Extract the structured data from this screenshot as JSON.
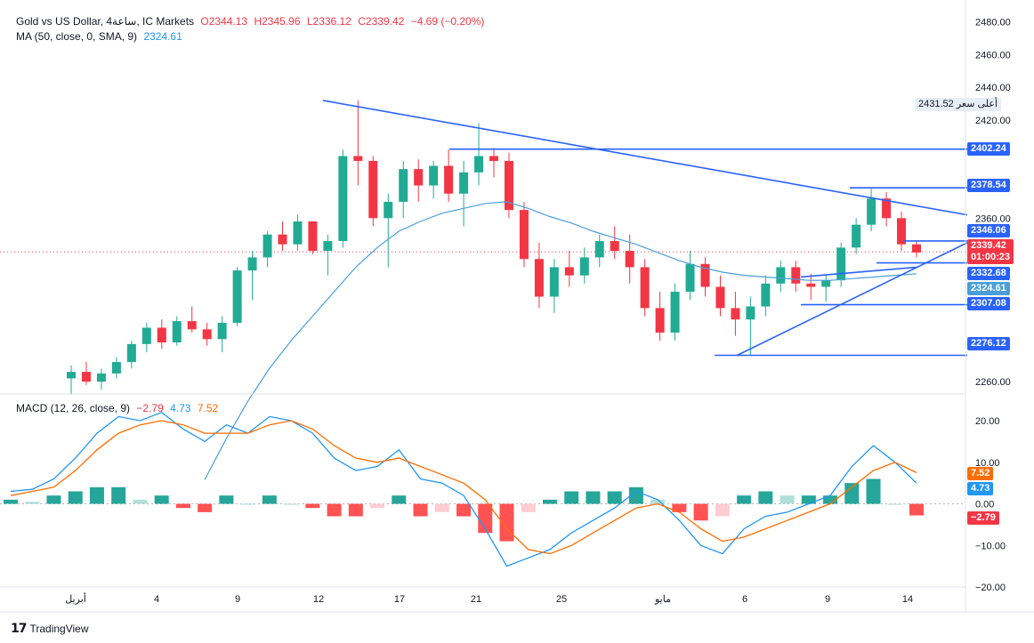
{
  "legend": {
    "symbol": "Gold vs US Dollar, 4ساعة, IC Markets",
    "open": "O2344.13",
    "high": "H2345.96",
    "low": "L2336.12",
    "close": "C2339.42",
    "change": "−4.69 (−0.20%)",
    "ma_label": "MA (50, close, 0, SMA, 9)",
    "ma_value": "2324.61",
    "macd_label": "MACD (12, 26, close, 9)",
    "macd_hist": "−2.79",
    "macd_line": "4.73",
    "macd_signal": "7.52"
  },
  "price_tags": {
    "high_label": "أعلى سعر",
    "high_value": "2431.52",
    "t2402": "2402.24",
    "t2378": "2378.54",
    "t2346": "2346.06",
    "current": "2339.42",
    "countdown": "01:00:23",
    "t2332": "2332.68",
    "ma": "2324.61",
    "t2307": "2307.08",
    "t2276": "2276.12"
  },
  "macd_tags": {
    "signal": "7.52",
    "macd": "4.73",
    "hist": "−2.79"
  },
  "footer": {
    "brand": "TradingView"
  },
  "colors": {
    "up": "#22ab94",
    "down": "#f23645",
    "line": "#2962ff",
    "ma": "#4a9fd8",
    "macd": "#2196f3",
    "signal": "#ff6d00"
  },
  "chart_data": {
    "type": "candlestick",
    "title": "Gold vs US Dollar, 4H, IC Markets",
    "y_ticks": [
      "2480.00",
      "2460.00",
      "2440.00",
      "2420.00",
      "2360.00",
      "2260.00"
    ],
    "ylim": [
      2253,
      2488
    ],
    "x_labels": [
      "أبريل",
      "4",
      "9",
      "12",
      "17",
      "21",
      "25",
      "مايو",
      "6",
      "9",
      "14"
    ],
    "macd_ticks": [
      "20.00",
      "10.00",
      "0.00",
      "−10.00",
      "−20.00"
    ],
    "macd_ylim": [
      -20,
      26
    ],
    "ma_series": [
      2200,
      2225,
      2248,
      2268,
      2285,
      2300,
      2315,
      2330,
      2342,
      2352,
      2358,
      2363,
      2366,
      2369,
      2370,
      2366,
      2361,
      2357,
      2352,
      2348,
      2344,
      2339,
      2334,
      2330,
      2327,
      2325,
      2324,
      2323,
      2322,
      2322,
      2323,
      2324,
      2325,
      2326
    ],
    "candles": [
      [
        2262,
        2270,
        2252,
        2266
      ],
      [
        2266,
        2272,
        2258,
        2260
      ],
      [
        2260,
        2268,
        2255,
        2265
      ],
      [
        2265,
        2275,
        2262,
        2272
      ],
      [
        2272,
        2285,
        2268,
        2283
      ],
      [
        2283,
        2296,
        2278,
        2293
      ],
      [
        2293,
        2298,
        2280,
        2284
      ],
      [
        2284,
        2300,
        2282,
        2297
      ],
      [
        2297,
        2306,
        2290,
        2292
      ],
      [
        2292,
        2296,
        2282,
        2286
      ],
      [
        2286,
        2300,
        2278,
        2296
      ],
      [
        2296,
        2330,
        2294,
        2328
      ],
      [
        2328,
        2340,
        2310,
        2336
      ],
      [
        2336,
        2352,
        2330,
        2350
      ],
      [
        2350,
        2358,
        2340,
        2344
      ],
      [
        2344,
        2362,
        2340,
        2358
      ],
      [
        2358,
        2358,
        2338,
        2340
      ],
      [
        2340,
        2350,
        2325,
        2346
      ],
      [
        2346,
        2402,
        2342,
        2398
      ],
      [
        2398,
        2432,
        2380,
        2395
      ],
      [
        2395,
        2398,
        2355,
        2360
      ],
      [
        2360,
        2375,
        2330,
        2370
      ],
      [
        2370,
        2395,
        2360,
        2390
      ],
      [
        2390,
        2396,
        2370,
        2380
      ],
      [
        2380,
        2395,
        2372,
        2392
      ],
      [
        2392,
        2402,
        2370,
        2375
      ],
      [
        2375,
        2395,
        2355,
        2388
      ],
      [
        2388,
        2418,
        2380,
        2398
      ],
      [
        2398,
        2403,
        2385,
        2395
      ],
      [
        2395,
        2400,
        2360,
        2365
      ],
      [
        2365,
        2370,
        2330,
        2335
      ],
      [
        2335,
        2345,
        2305,
        2312
      ],
      [
        2312,
        2335,
        2302,
        2330
      ],
      [
        2330,
        2340,
        2318,
        2325
      ],
      [
        2325,
        2342,
        2320,
        2336
      ],
      [
        2336,
        2350,
        2330,
        2346
      ],
      [
        2346,
        2355,
        2335,
        2340
      ],
      [
        2340,
        2350,
        2320,
        2330
      ],
      [
        2330,
        2335,
        2300,
        2305
      ],
      [
        2305,
        2315,
        2285,
        2290
      ],
      [
        2290,
        2320,
        2285,
        2315
      ],
      [
        2315,
        2340,
        2310,
        2332
      ],
      [
        2332,
        2336,
        2312,
        2318
      ],
      [
        2318,
        2325,
        2300,
        2305
      ],
      [
        2305,
        2315,
        2288,
        2298
      ],
      [
        2298,
        2312,
        2276,
        2306
      ],
      [
        2306,
        2325,
        2300,
        2320
      ],
      [
        2320,
        2334,
        2315,
        2330
      ],
      [
        2330,
        2334,
        2315,
        2320
      ],
      [
        2320,
        2326,
        2310,
        2318
      ],
      [
        2318,
        2325,
        2309,
        2322
      ],
      [
        2322,
        2345,
        2318,
        2342
      ],
      [
        2342,
        2360,
        2338,
        2356
      ],
      [
        2356,
        2378,
        2352,
        2372
      ],
      [
        2372,
        2376,
        2355,
        2360
      ],
      [
        2360,
        2364,
        2340,
        2344
      ],
      [
        2344,
        2346,
        2336,
        2339
      ]
    ],
    "macd_line": [
      3,
      3.5,
      6,
      11,
      17,
      21,
      20,
      22,
      18,
      15,
      19,
      17,
      21,
      20,
      17,
      11,
      8,
      9,
      13,
      6,
      5,
      2,
      -6,
      -15,
      -13,
      -11,
      -7,
      -4,
      -1,
      3,
      1,
      -4,
      -10,
      -12,
      -6,
      -3,
      -2,
      0,
      2,
      9,
      14,
      10,
      5
    ],
    "signal_line": [
      2,
      3,
      4,
      8,
      13,
      17,
      19,
      20,
      19,
      17,
      17,
      17,
      19,
      20,
      18,
      14,
      11,
      10,
      11,
      9,
      7,
      5,
      1,
      -6,
      -11,
      -12,
      -10,
      -7,
      -4,
      -1,
      0,
      -2,
      -6,
      -9,
      -8,
      -6,
      -4,
      -2,
      0,
      4,
      8,
      10,
      7.5
    ],
    "histogram": [
      1,
      0.5,
      2,
      3,
      4,
      4,
      1,
      2,
      -1,
      -2,
      2,
      0,
      2,
      0,
      -1,
      -3,
      -3,
      -1,
      2,
      -3,
      -2,
      -3,
      -7,
      -9,
      -2,
      1,
      3,
      3,
      3,
      4,
      1,
      -2,
      -4,
      -3,
      2,
      3,
      2,
      2,
      2,
      5,
      6,
      0,
      -2.79
    ]
  }
}
